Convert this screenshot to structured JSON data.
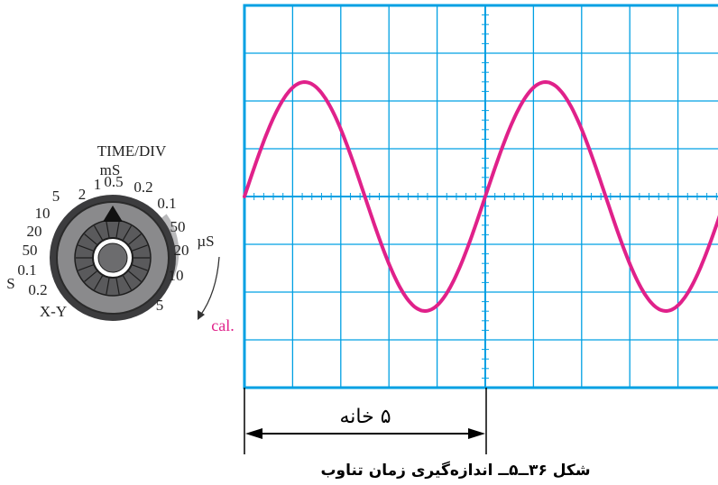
{
  "knob": {
    "title": "TIME/DIV",
    "ms_label": "mS",
    "us_label": "µS",
    "left_s_label": "S",
    "xy_label": "X-Y",
    "cal_label": "cal.",
    "scale": [
      {
        "id": "ms-1",
        "text": "1"
      },
      {
        "id": "ms-0-5",
        "text": "0.5"
      },
      {
        "id": "ms-0-2",
        "text": "0.2"
      },
      {
        "id": "ms-0-1",
        "text": "0.1"
      },
      {
        "id": "ms-2",
        "text": "2"
      },
      {
        "id": "ms-5",
        "text": "5"
      },
      {
        "id": "ms-10",
        "text": "10"
      },
      {
        "id": "ms-20",
        "text": "20"
      },
      {
        "id": "ms-50",
        "text": "50"
      },
      {
        "id": "s-0-1",
        "text": "0.1"
      },
      {
        "id": "s-0-2",
        "text": "0.2"
      },
      {
        "id": "us-50",
        "text": "50"
      },
      {
        "id": "us-20",
        "text": "20"
      },
      {
        "id": "us-10",
        "text": "10"
      },
      {
        "id": "us-5",
        "text": "5"
      }
    ]
  },
  "measure": {
    "label": "۵ خانه"
  },
  "caption": "شکل ۳۶ــ۵ــ اندازه‌گیری زمان تناوب",
  "colors": {
    "grid": "#00a0e3",
    "wave": "#e0218a",
    "cal_text": "#e0218a",
    "knob_arc": "#b9b9bb"
  }
}
